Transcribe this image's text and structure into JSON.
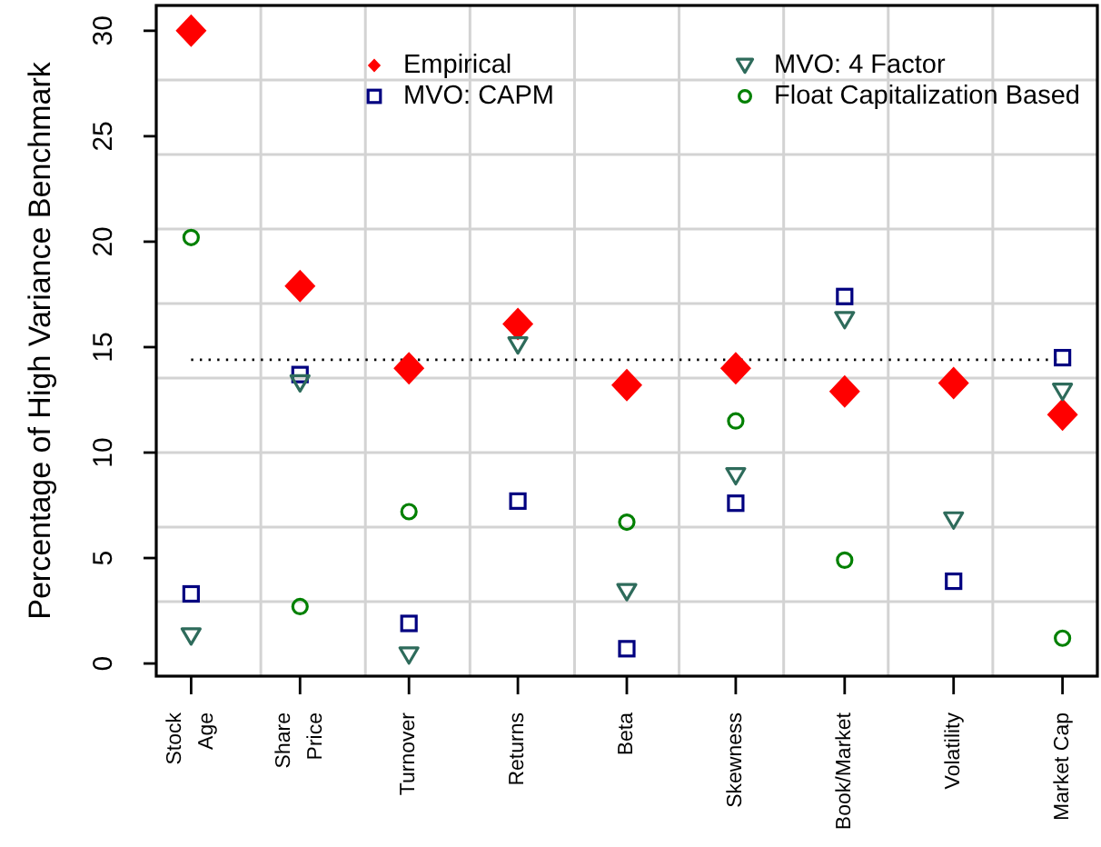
{
  "chart_data": {
    "type": "scatter",
    "ylabel": "Percentage of High Variance Benchmark",
    "categories": [
      "Stock\nAge",
      "Share\nPrice",
      "Turnover",
      "Returns",
      "Beta",
      "Skewness",
      "Book/Market",
      "Volatility",
      "Market Cap"
    ],
    "series": [
      {
        "name": "Empirical",
        "color": "#ff0000",
        "marker": "diamond",
        "values": [
          30.0,
          17.9,
          14.0,
          16.1,
          13.2,
          14.0,
          12.9,
          13.3,
          11.8
        ]
      },
      {
        "name": "MVO: CAPM",
        "color": "#000080",
        "marker": "square",
        "values": [
          3.3,
          13.7,
          1.9,
          7.7,
          0.7,
          7.6,
          17.4,
          3.9,
          14.5
        ]
      },
      {
        "name": "MVO: 4 Factor",
        "color": "#2e6b5b",
        "marker": "triangle",
        "values": [
          1.3,
          13.3,
          0.4,
          15.1,
          3.4,
          8.9,
          16.3,
          6.8,
          12.9
        ]
      },
      {
        "name": "Float Capitalization Based",
        "color": "#008000",
        "marker": "circle",
        "values": [
          20.2,
          2.7,
          7.2,
          null,
          6.7,
          11.5,
          4.9,
          null,
          1.2
        ]
      }
    ],
    "ylim": [
      -0.6,
      31.2
    ],
    "yticks": [
      0,
      5,
      10,
      15,
      20,
      25,
      30
    ],
    "grid": true,
    "legend": "top right",
    "ref_lines": [
      {
        "axis": "y",
        "value": 14.4,
        "color": "#000000",
        "line_style": "dotted"
      }
    ]
  }
}
